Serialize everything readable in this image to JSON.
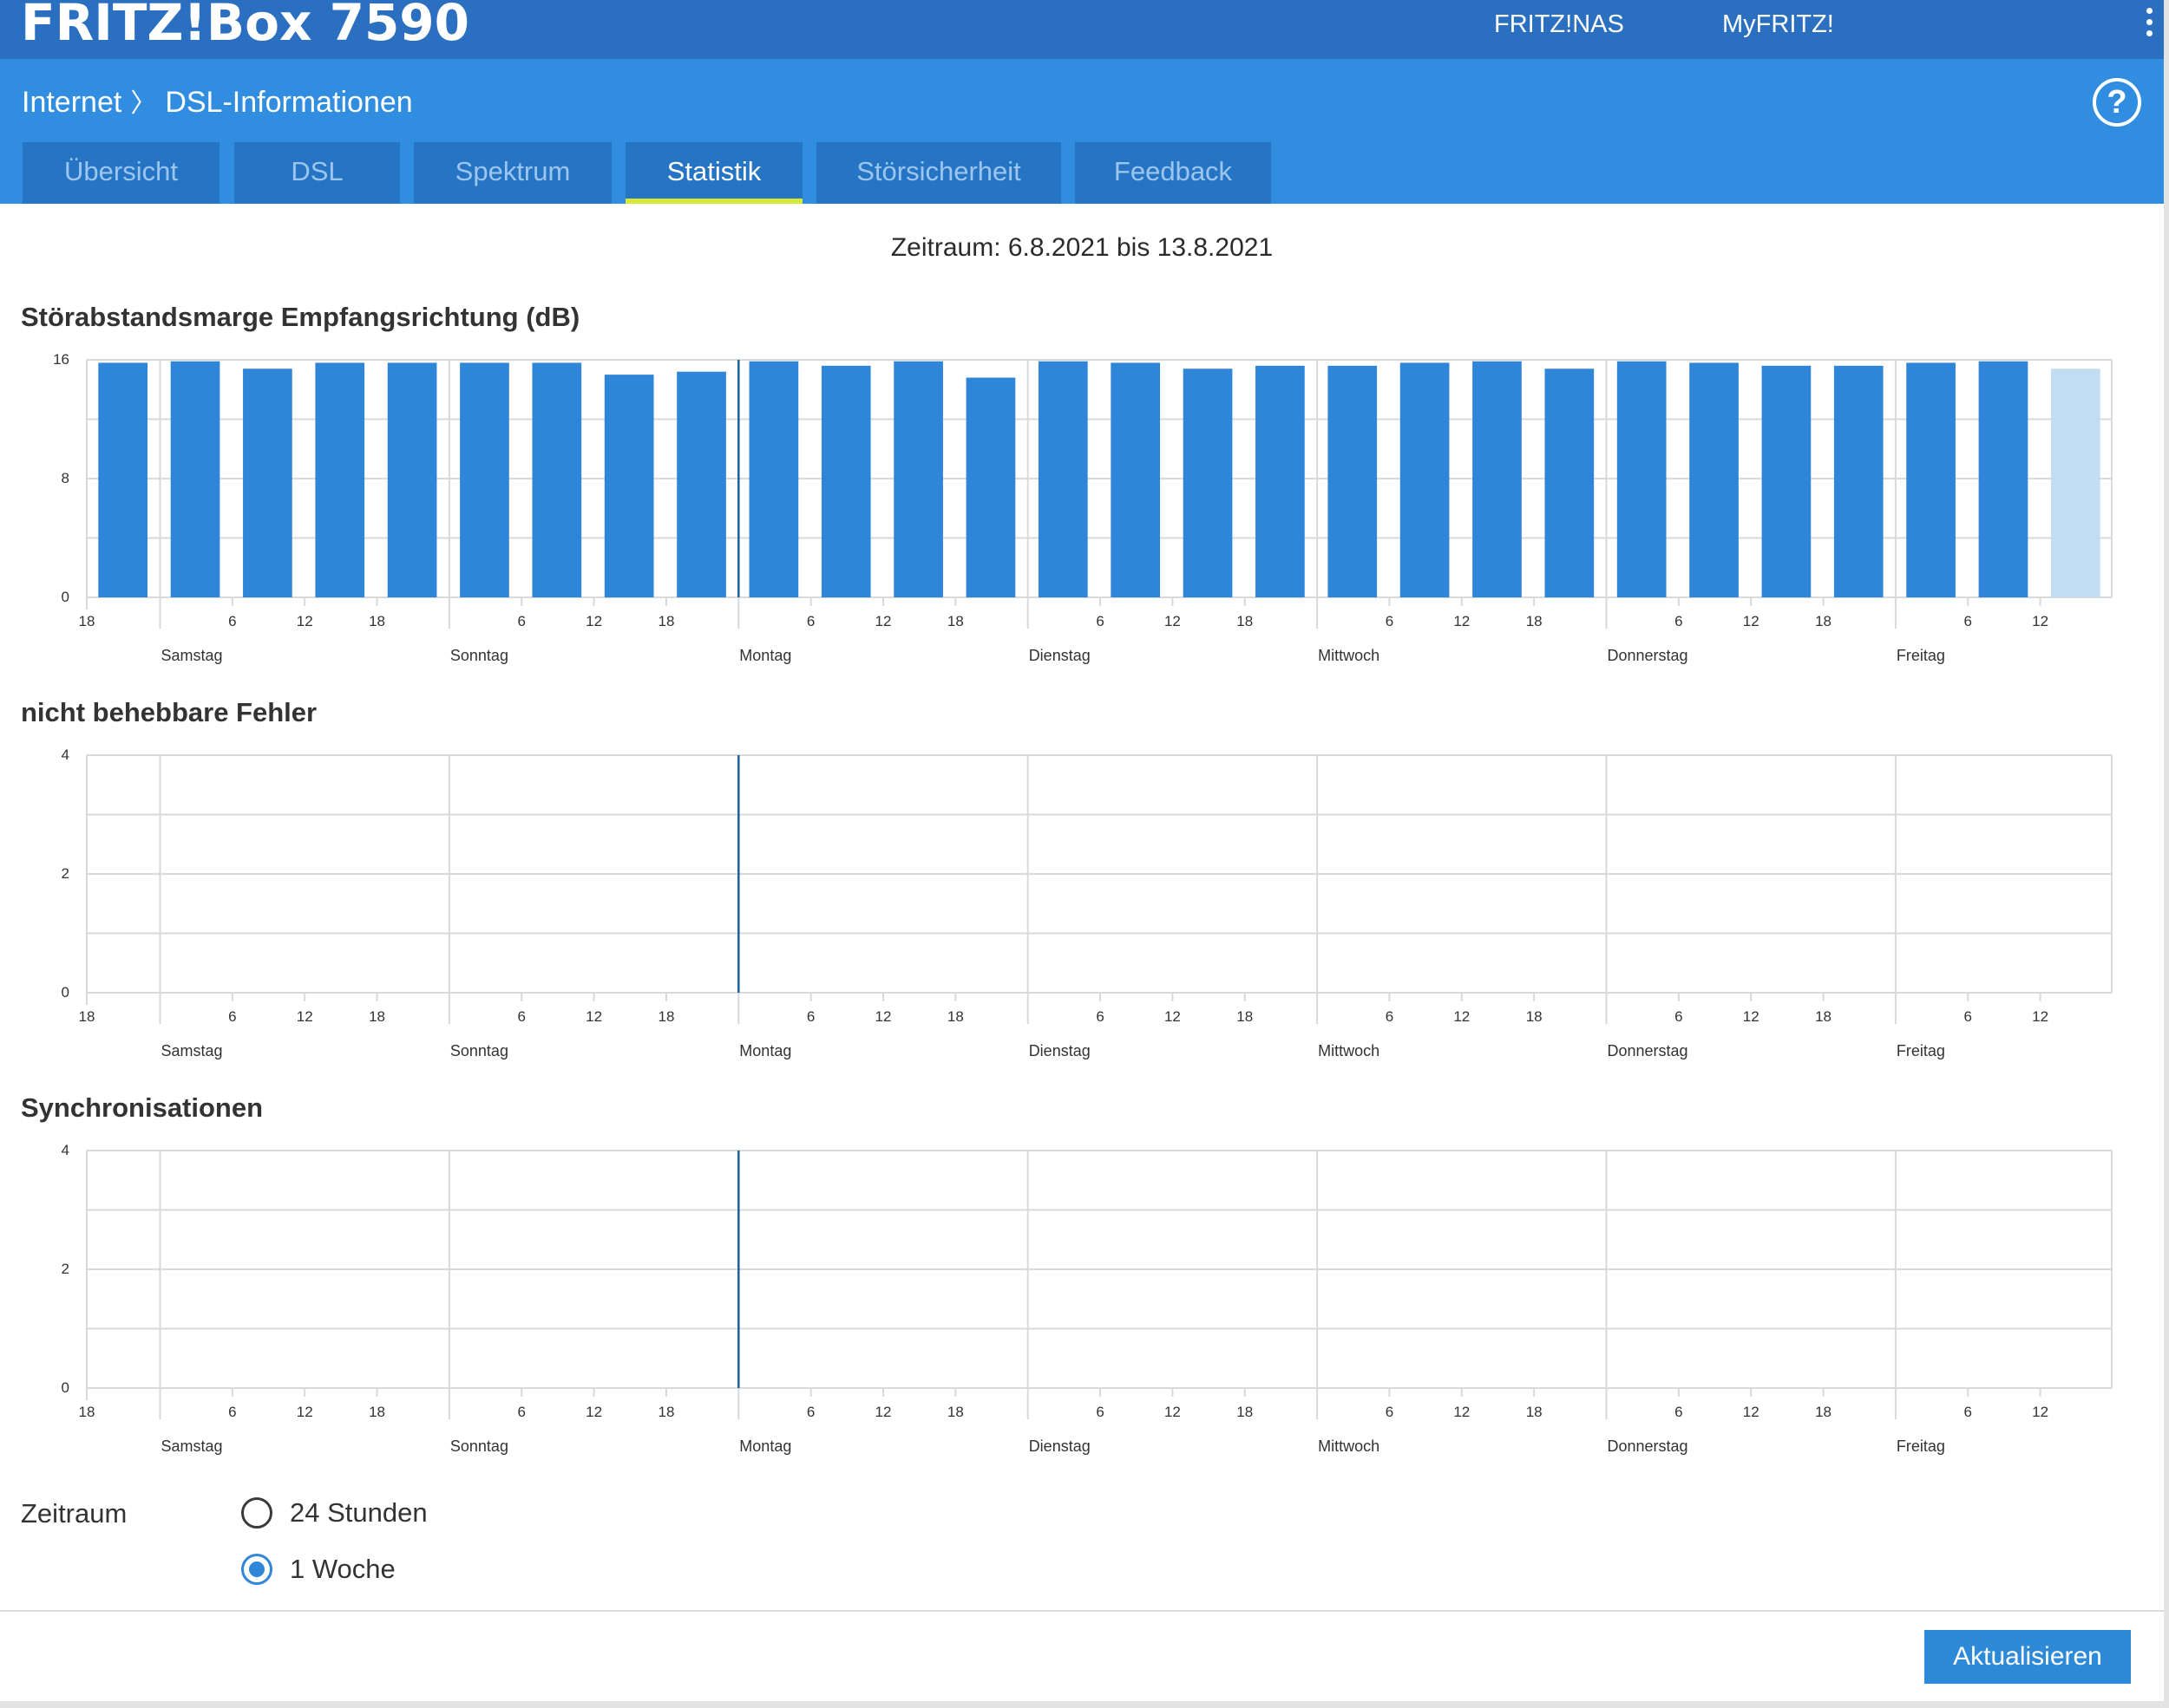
{
  "header": {
    "brand": "FRITZ!Box 7590",
    "links": [
      "FRITZ!NAS",
      "MyFRITZ!"
    ]
  },
  "breadcrumb": {
    "section": "Internet",
    "page": "DSL-Informationen"
  },
  "help_label": "?",
  "tabs": [
    {
      "label": "Übersicht",
      "active": false
    },
    {
      "label": "DSL",
      "active": false
    },
    {
      "label": "Spektrum",
      "active": false
    },
    {
      "label": "Statistik",
      "active": true
    },
    {
      "label": "Störsicherheit",
      "active": false
    },
    {
      "label": "Feedback",
      "active": false
    }
  ],
  "period_text": "Zeitraum: 6.8.2021 bis 13.8.2021",
  "colors": {
    "bar": "#2f86d8",
    "bar_current": "#c2dcf2",
    "marker": "#1f5f9e",
    "header": "#2a6fc0",
    "subheader": "#308ddf",
    "accent": "#d6ea35"
  },
  "chart_data": [
    {
      "type": "bar",
      "title": "Störabstandsmarge Empfangsrichtung (dB)",
      "ylim": [
        0,
        16
      ],
      "y_ticks": [
        "0",
        "8",
        "16"
      ],
      "x": [
        "18",
        "0",
        "6",
        "12",
        "18",
        "0",
        "6",
        "12",
        "18",
        "0",
        "6",
        "12",
        "18",
        "0",
        "6",
        "12",
        "18",
        "0",
        "6",
        "12",
        "18",
        "0",
        "6",
        "12",
        "18",
        "0",
        "6",
        "12"
      ],
      "values": [
        15.8,
        15.9,
        15.4,
        15.8,
        15.8,
        15.8,
        15.8,
        15.0,
        15.2,
        15.9,
        15.6,
        15.9,
        14.8,
        15.9,
        15.8,
        15.4,
        15.6,
        15.6,
        15.8,
        15.9,
        15.4,
        15.9,
        15.8,
        15.6,
        15.6,
        15.8,
        15.9,
        15.4
      ],
      "x_tick_labels": [
        "18",
        "6",
        "12",
        "18",
        "6",
        "12",
        "18",
        "6",
        "12",
        "18",
        "6",
        "12",
        "18",
        "6",
        "12",
        "18",
        "6",
        "12",
        "18",
        "6",
        "12"
      ],
      "days": [
        "Samstag",
        "Sonntag",
        "Montag",
        "Dienstag",
        "Mittwoch",
        "Donnerstag",
        "Freitag"
      ],
      "current_bar_index": 27,
      "grid": true
    },
    {
      "type": "bar",
      "title": "nicht behebbare Fehler",
      "ylim": [
        0,
        4
      ],
      "y_ticks": [
        "0",
        "2",
        "4"
      ],
      "values": [],
      "x_tick_labels": [
        "18",
        "6",
        "12",
        "18",
        "6",
        "12",
        "18",
        "6",
        "12",
        "18",
        "6",
        "12",
        "18",
        "6",
        "12",
        "18",
        "6",
        "12",
        "18",
        "6",
        "12"
      ],
      "days": [
        "Samstag",
        "Sonntag",
        "Montag",
        "Dienstag",
        "Mittwoch",
        "Donnerstag",
        "Freitag"
      ],
      "grid": true
    },
    {
      "type": "bar",
      "title": "Synchronisationen",
      "ylim": [
        0,
        4
      ],
      "y_ticks": [
        "0",
        "2",
        "4"
      ],
      "values": [],
      "x_tick_labels": [
        "18",
        "6",
        "12",
        "18",
        "6",
        "12",
        "18",
        "6",
        "12",
        "18",
        "6",
        "12",
        "18",
        "6",
        "12",
        "18",
        "6",
        "12",
        "18",
        "6",
        "12"
      ],
      "days": [
        "Samstag",
        "Sonntag",
        "Montag",
        "Dienstag",
        "Mittwoch",
        "Donnerstag",
        "Freitag"
      ],
      "grid": true
    }
  ],
  "zeitraum": {
    "label": "Zeitraum",
    "options": [
      {
        "label": "24 Stunden",
        "checked": false
      },
      {
        "label": "1 Woche",
        "checked": true
      }
    ]
  },
  "update_button": "Aktualisieren"
}
